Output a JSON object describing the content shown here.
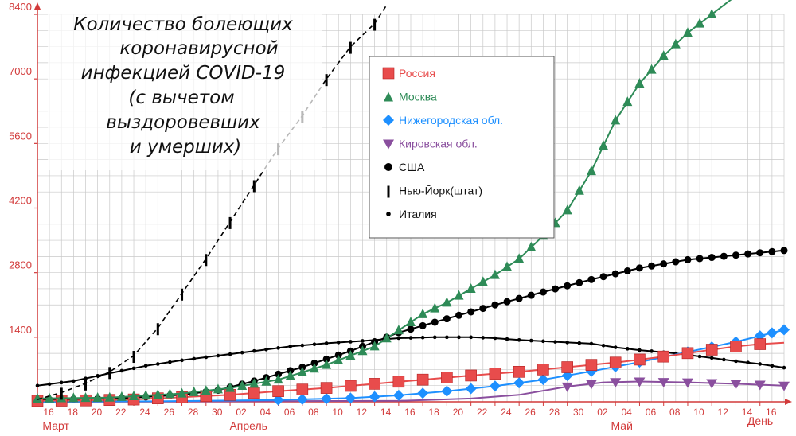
{
  "chart_data": {
    "type": "line",
    "title_lines": [
      "Количество болеющих",
      "коронавирусной",
      "инфекцией COVID-19",
      "(с вычетом",
      "выздоровевших",
      "и умерших)"
    ],
    "xlabel": "День",
    "x_tick_labels": [
      "16",
      "18",
      "20",
      "22",
      "24",
      "26",
      "28",
      "30",
      "02",
      "04",
      "06",
      "08",
      "10",
      "12",
      "14",
      "16",
      "18",
      "20",
      "22",
      "24",
      "26",
      "28",
      "30",
      "02",
      "04",
      "06",
      "08",
      "10",
      "12",
      "14",
      "16"
    ],
    "month_labels": [
      "Март",
      "Апрель",
      "Май"
    ],
    "y_ticks": [
      0,
      1400,
      2800,
      4200,
      5600,
      7000,
      8400
    ],
    "y_tick_labels": [
      "1400",
      "2800",
      "4200",
      "5600",
      "7000",
      "8400"
    ],
    "ylim": [
      0,
      8400
    ],
    "day_range": [
      0,
      62
    ],
    "grid": true,
    "legend_position": "top-center",
    "series": [
      {
        "name": "Россия",
        "color": "#e84c4c",
        "marker": "square",
        "line": "solid",
        "marker_days": [
          0,
          2,
          4,
          6,
          8,
          10,
          12,
          14,
          16,
          18,
          20,
          22,
          24,
          26,
          28,
          30,
          32,
          34,
          36,
          38,
          40,
          42,
          44,
          46,
          48,
          50,
          52,
          54,
          56,
          58,
          60
        ],
        "points": [
          [
            0,
            20
          ],
          [
            4,
            30
          ],
          [
            8,
            50
          ],
          [
            12,
            100
          ],
          [
            16,
            150
          ],
          [
            20,
            230
          ],
          [
            24,
            300
          ],
          [
            28,
            390
          ],
          [
            32,
            480
          ],
          [
            36,
            570
          ],
          [
            40,
            650
          ],
          [
            44,
            750
          ],
          [
            48,
            850
          ],
          [
            52,
            980
          ],
          [
            56,
            1130
          ],
          [
            58,
            1200
          ],
          [
            60,
            1250
          ],
          [
            62,
            1280
          ]
        ]
      },
      {
        "name": "Москва",
        "color": "#2e8b57",
        "marker": "triangle",
        "line": "solid",
        "marker_days": [
          0,
          1,
          2,
          3,
          4,
          5,
          6,
          7,
          8,
          9,
          10,
          11,
          12,
          13,
          14,
          15,
          16,
          17,
          18,
          19,
          20,
          21,
          22,
          23,
          24,
          25,
          26,
          27,
          28,
          29,
          30,
          31,
          32,
          33,
          34,
          35,
          36,
          37,
          38,
          39,
          40,
          41,
          42,
          43,
          44,
          45,
          46,
          47,
          48,
          49,
          50,
          51,
          52,
          53,
          54,
          55,
          56,
          57,
          58,
          59,
          60
        ],
        "points": [
          [
            0,
            70
          ],
          [
            6,
            90
          ],
          [
            12,
            180
          ],
          [
            16,
            300
          ],
          [
            20,
            480
          ],
          [
            24,
            800
          ],
          [
            28,
            1200
          ],
          [
            30,
            1550
          ],
          [
            32,
            1900
          ],
          [
            34,
            2150
          ],
          [
            36,
            2450
          ],
          [
            38,
            2750
          ],
          [
            40,
            3100
          ],
          [
            42,
            3600
          ],
          [
            44,
            4150
          ],
          [
            46,
            5000
          ],
          [
            48,
            6100
          ],
          [
            50,
            6900
          ],
          [
            52,
            7500
          ],
          [
            54,
            8000
          ],
          [
            56,
            8400
          ],
          [
            58,
            8800
          ],
          [
            60,
            9200
          ]
        ]
      },
      {
        "name": "Нижегородская обл.",
        "color": "#1e90ff",
        "marker": "diamond",
        "line": "solid",
        "marker_days": [
          20,
          22,
          24,
          26,
          28,
          30,
          32,
          34,
          36,
          38,
          40,
          42,
          44,
          46,
          48,
          50,
          52,
          54,
          56,
          58,
          60,
          61,
          62
        ],
        "points": [
          [
            0,
            0
          ],
          [
            10,
            10
          ],
          [
            20,
            40
          ],
          [
            26,
            80
          ],
          [
            30,
            140
          ],
          [
            34,
            230
          ],
          [
            38,
            340
          ],
          [
            42,
            480
          ],
          [
            46,
            660
          ],
          [
            50,
            860
          ],
          [
            54,
            1080
          ],
          [
            58,
            1300
          ],
          [
            62,
            1560
          ]
        ]
      },
      {
        "name": "Кировская обл.",
        "color": "#8a4f9e",
        "marker": "triangle-down",
        "line": "solid",
        "marker_days": [
          44,
          46,
          48,
          50,
          52,
          54,
          56,
          58,
          60,
          62
        ],
        "points": [
          [
            0,
            0
          ],
          [
            30,
            20
          ],
          [
            36,
            70
          ],
          [
            40,
            150
          ],
          [
            44,
            330
          ],
          [
            47,
            420
          ],
          [
            50,
            440
          ],
          [
            54,
            420
          ],
          [
            58,
            390
          ],
          [
            62,
            350
          ]
        ]
      },
      {
        "name": "США",
        "color": "#000000",
        "marker": "dot-large",
        "line": "solid",
        "marker_days": [
          0,
          1,
          2,
          3,
          4,
          5,
          6,
          7,
          8,
          9,
          10,
          11,
          12,
          13,
          14,
          15,
          16,
          17,
          18,
          19,
          20,
          21,
          22,
          23,
          24,
          25,
          26,
          27,
          28,
          29,
          30,
          31,
          32,
          33,
          34,
          35,
          36,
          37,
          38,
          39,
          40,
          41,
          42,
          43,
          44,
          45,
          46,
          47,
          48,
          49,
          50,
          51,
          52,
          53,
          54,
          55,
          56,
          57,
          58,
          59,
          60,
          61,
          62
        ],
        "points": [
          [
            0,
            40
          ],
          [
            4,
            60
          ],
          [
            8,
            90
          ],
          [
            12,
            150
          ],
          [
            15,
            250
          ],
          [
            18,
            450
          ],
          [
            22,
            750
          ],
          [
            26,
            1100
          ],
          [
            30,
            1500
          ],
          [
            34,
            1800
          ],
          [
            38,
            2100
          ],
          [
            42,
            2380
          ],
          [
            46,
            2650
          ],
          [
            50,
            2900
          ],
          [
            54,
            3080
          ],
          [
            58,
            3180
          ],
          [
            62,
            3280
          ]
        ]
      },
      {
        "name": "Нью-Йорк(штат)",
        "color": "#000000",
        "marker": "bar",
        "line": "dashed",
        "marker_days": [
          2,
          4,
          6,
          8,
          10,
          12,
          14,
          16,
          18,
          20,
          22,
          24,
          26,
          28,
          30,
          32,
          34,
          36,
          38,
          40,
          42,
          44,
          46,
          48,
          50,
          52,
          54,
          56,
          58,
          60
        ],
        "points": [
          [
            0,
            50
          ],
          [
            2,
            200
          ],
          [
            4,
            400
          ],
          [
            6,
            650
          ],
          [
            8,
            1000
          ],
          [
            10,
            1600
          ],
          [
            12,
            2350
          ],
          [
            14,
            3100
          ],
          [
            16,
            3900
          ],
          [
            18,
            4700
          ],
          [
            20,
            5500
          ],
          [
            22,
            6200
          ],
          [
            24,
            7000
          ],
          [
            26,
            7700
          ],
          [
            28,
            8200
          ],
          [
            29,
            8600
          ]
        ]
      },
      {
        "name": "Италия",
        "color": "#000000",
        "marker": "dot-small",
        "line": "solid",
        "marker_days": [
          0,
          1,
          2,
          3,
          4,
          5,
          6,
          7,
          8,
          9,
          10,
          11,
          12,
          13,
          14,
          15,
          16,
          17,
          18,
          19,
          20,
          21,
          22,
          23,
          24,
          25,
          26,
          27,
          28,
          29,
          30,
          31,
          32,
          33,
          34,
          35,
          36,
          37,
          38,
          39,
          40,
          41,
          42,
          43,
          44,
          45,
          46,
          47,
          48,
          49,
          50,
          51,
          52,
          53,
          54,
          55,
          56,
          57,
          58,
          59,
          60,
          61,
          62
        ],
        "points": [
          [
            0,
            350
          ],
          [
            3,
            450
          ],
          [
            6,
            620
          ],
          [
            9,
            780
          ],
          [
            12,
            900
          ],
          [
            15,
            1000
          ],
          [
            18,
            1100
          ],
          [
            21,
            1200
          ],
          [
            24,
            1270
          ],
          [
            27,
            1320
          ],
          [
            30,
            1380
          ],
          [
            33,
            1400
          ],
          [
            36,
            1400
          ],
          [
            38,
            1380
          ],
          [
            40,
            1340
          ],
          [
            43,
            1300
          ],
          [
            46,
            1260
          ],
          [
            48,
            1180
          ],
          [
            50,
            1120
          ],
          [
            53,
            1050
          ],
          [
            56,
            950
          ],
          [
            58,
            880
          ],
          [
            60,
            820
          ],
          [
            62,
            740
          ]
        ]
      }
    ]
  }
}
